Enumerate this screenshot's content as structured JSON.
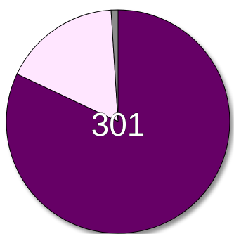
{
  "chart_data": {
    "type": "pie",
    "center_label": "301",
    "start_angle_deg": 0,
    "direction": "clockwise",
    "slices": [
      {
        "value": 82.0,
        "color": "#660066"
      },
      {
        "value": 17.0,
        "color": "#ffe6ff"
      },
      {
        "value": 1.0,
        "color": "#8c8c8c"
      }
    ],
    "outline_color": "#000000",
    "shadow": true
  }
}
